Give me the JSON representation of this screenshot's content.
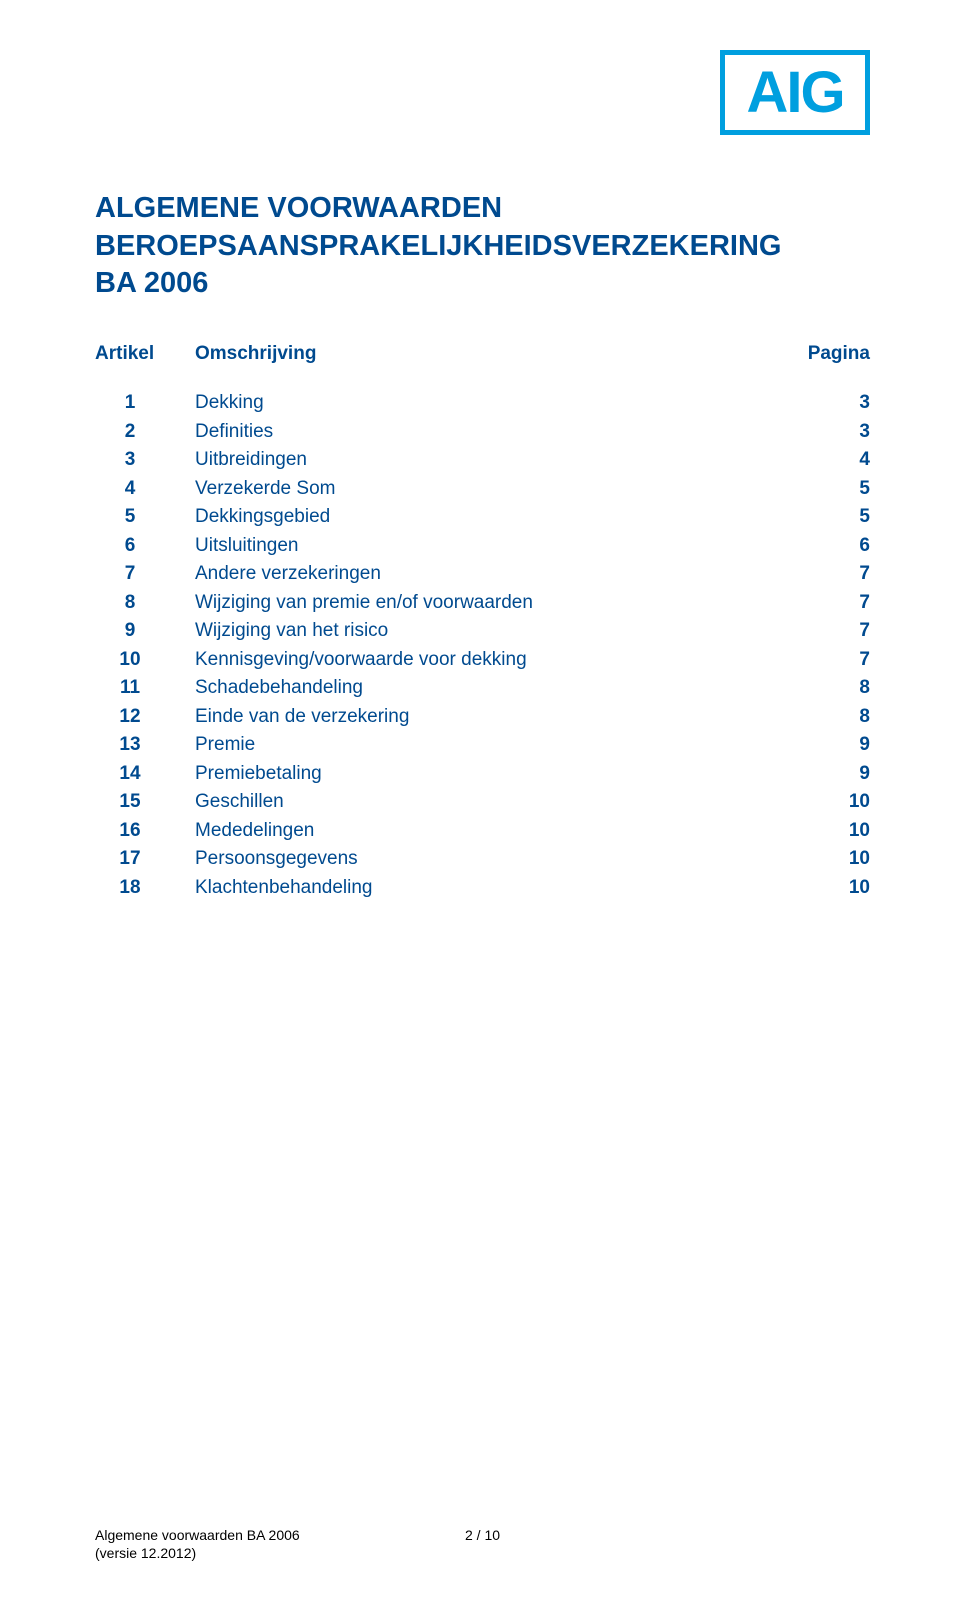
{
  "logo": {
    "text": "AIG",
    "border_color": "#009fdf",
    "text_color": "#009fdf"
  },
  "title": {
    "line1": "ALGEMENE VOORWAARDEN",
    "line2": "BEROEPSAANSPRAKELIJKHEIDSVERZEKERING",
    "line3": "BA 2006",
    "color": "#004a8f"
  },
  "headers": {
    "artikel": "Artikel",
    "omschrijving": "Omschrijving",
    "pagina": "Pagina"
  },
  "rows": [
    {
      "n": "1",
      "desc": "Dekking",
      "p": "3"
    },
    {
      "n": "2",
      "desc": "Definities",
      "p": "3"
    },
    {
      "n": "3",
      "desc": "Uitbreidingen",
      "p": "4"
    },
    {
      "n": "4",
      "desc": "Verzekerde Som",
      "p": "5"
    },
    {
      "n": "5",
      "desc": "Dekkingsgebied",
      "p": "5"
    },
    {
      "n": "6",
      "desc": "Uitsluitingen",
      "p": "6"
    },
    {
      "n": "7",
      "desc": "Andere verzekeringen",
      "p": "7"
    },
    {
      "n": "8",
      "desc": "Wijziging van premie en/of voorwaarden",
      "p": "7"
    },
    {
      "n": "9",
      "desc": "Wijziging van het risico",
      "p": "7"
    },
    {
      "n": "10",
      "desc": "Kennisgeving/voorwaarde voor dekking",
      "p": "7"
    },
    {
      "n": "11",
      "desc": "Schadebehandeling",
      "p": "8"
    },
    {
      "n": "12",
      "desc": "Einde van de verzekering",
      "p": "8"
    },
    {
      "n": "13",
      "desc": "Premie",
      "p": "9"
    },
    {
      "n": "14",
      "desc": "Premiebetaling",
      "p": "9"
    },
    {
      "n": "15",
      "desc": "Geschillen",
      "p": "10"
    },
    {
      "n": "16",
      "desc": "Mededelingen",
      "p": "10"
    },
    {
      "n": "17",
      "desc": "Persoonsgegevens",
      "p": "10"
    },
    {
      "n": "18",
      "desc": "Klachtenbehandeling",
      "p": "10"
    }
  ],
  "footer": {
    "left_line1": "Algemene voorwaarden BA 2006",
    "left_line2": "(versie 12.2012)",
    "center": "2 / 10"
  }
}
